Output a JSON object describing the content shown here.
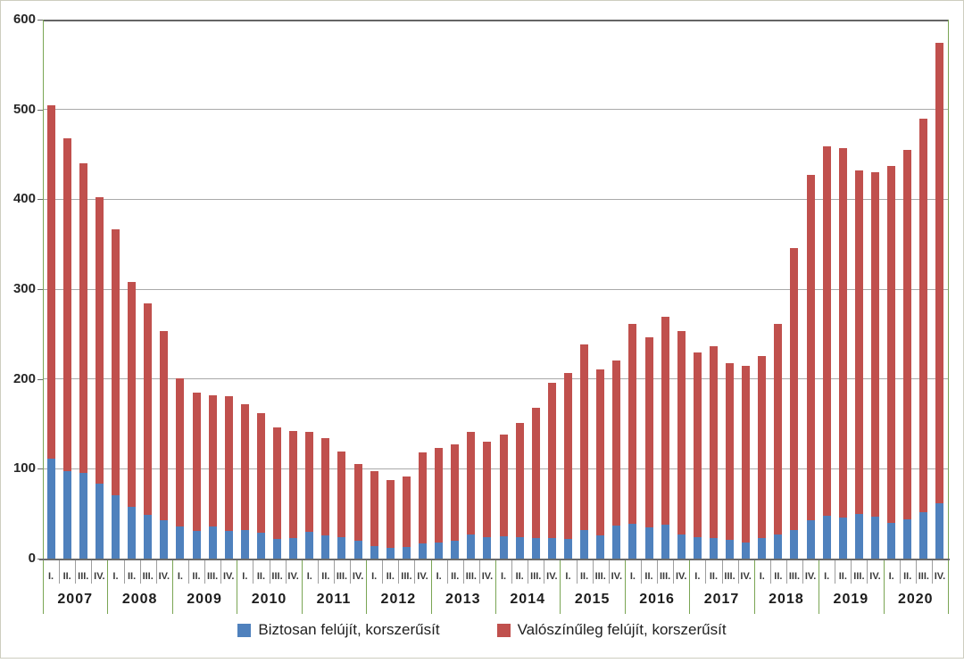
{
  "window": {
    "background": "#ffffff"
  },
  "colors": {
    "blue": "#4f81bd",
    "red": "#c0504d",
    "gridline": "#a9a9a9",
    "axis_dark": "#6b6b6b",
    "separator_green": "#7aa554",
    "tick_gray": "#9e9e9e",
    "text": "#262626"
  },
  "legend": {
    "items": [
      {
        "label": "Biztosan felújít, korszerűsít",
        "color_key": "blue"
      },
      {
        "label": "Valószínűleg felújít, korszerűsít",
        "color_key": "red"
      }
    ]
  },
  "chart_data": {
    "type": "bar",
    "stacked": true,
    "title": "",
    "xlabel": "",
    "ylabel": "",
    "ylim": [
      0,
      600
    ],
    "yticks": [
      0,
      100,
      200,
      300,
      400,
      500,
      600
    ],
    "grid": true,
    "legend_position": "bottom",
    "years": [
      "2007",
      "2008",
      "2009",
      "2010",
      "2011",
      "2012",
      "2013",
      "2014",
      "2015",
      "2016",
      "2017",
      "2018",
      "2019",
      "2020"
    ],
    "quarter_labels": [
      "I.",
      "II.",
      "III.",
      "IV."
    ],
    "series": [
      {
        "name": "Biztosan felújít, korszerűsít",
        "color": "#4f81bd",
        "values": [
          111,
          97,
          95,
          83,
          71,
          58,
          49,
          43,
          36,
          31,
          36,
          31,
          32,
          29,
          22,
          23,
          30,
          26,
          24,
          20,
          14,
          12,
          13,
          17,
          18,
          20,
          27,
          24,
          25,
          24,
          23,
          23,
          22,
          32,
          26,
          37,
          39,
          35,
          38,
          27,
          24,
          23,
          21,
          18,
          23,
          27,
          32,
          43,
          48,
          46,
          50,
          47,
          40,
          44,
          52,
          62
        ]
      },
      {
        "name": "Valószínűleg felújít, korszerűsít",
        "color": "#c0504d",
        "values": [
          394,
          371,
          345,
          319,
          296,
          250,
          235,
          210,
          165,
          154,
          146,
          150,
          140,
          133,
          124,
          119,
          111,
          108,
          95,
          85,
          83,
          75,
          78,
          101,
          105,
          107,
          114,
          106,
          113,
          127,
          145,
          173,
          185,
          206,
          185,
          184,
          222,
          211,
          231,
          226,
          205,
          213,
          197,
          197,
          203,
          234,
          314,
          384,
          411,
          411,
          382,
          383,
          397,
          411,
          438,
          512
        ]
      }
    ],
    "totals": [
      505,
      468,
      440,
      402,
      367,
      308,
      284,
      253,
      201,
      185,
      182,
      181,
      172,
      162,
      146,
      142,
      141,
      134,
      119,
      105,
      97,
      87,
      91,
      118,
      123,
      127,
      141,
      130,
      138,
      151,
      168,
      196,
      207,
      238,
      211,
      221,
      261,
      246,
      269,
      253,
      229,
      236,
      218,
      215,
      226,
      261,
      346,
      427,
      459,
      457,
      432,
      430,
      437,
      455,
      490,
      574
    ]
  }
}
